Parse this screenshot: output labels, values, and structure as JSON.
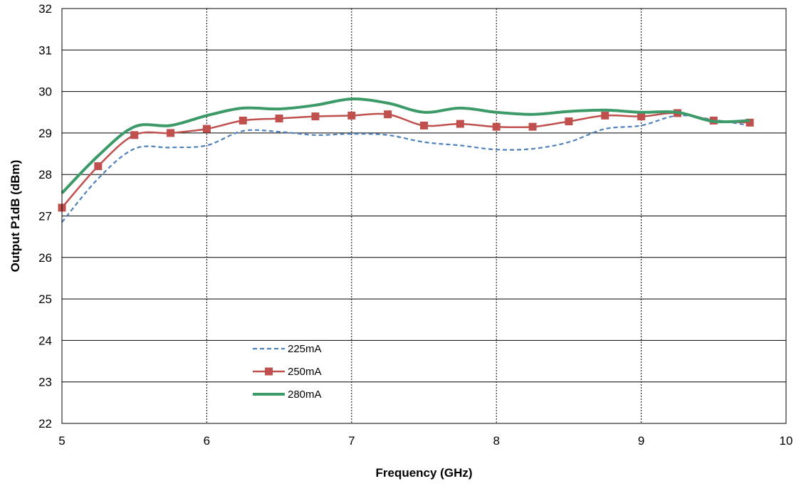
{
  "chart_data": {
    "type": "line",
    "title": "",
    "xlabel": "Frequency (GHz)",
    "ylabel": "Output P1dB (dBm)",
    "xlim": [
      5,
      10
    ],
    "ylim": [
      22,
      32
    ],
    "xticks": [
      5,
      6,
      7,
      8,
      9,
      10
    ],
    "yticks": [
      22,
      23,
      24,
      25,
      26,
      27,
      28,
      29,
      30,
      31,
      32
    ],
    "grid": {
      "horizontal": "solid",
      "vertical": "dashed"
    },
    "legend_position": "bottom-left",
    "x": [
      5,
      5.25,
      5.5,
      5.75,
      6,
      6.25,
      6.5,
      6.75,
      7,
      7.25,
      7.5,
      7.75,
      8,
      8.25,
      8.5,
      8.75,
      9,
      9.25,
      9.5,
      9.75
    ],
    "series": [
      {
        "name": "225mA",
        "style": "dashed",
        "marker": "none",
        "color": "#4F81BD",
        "values": [
          26.85,
          27.9,
          28.62,
          28.65,
          28.7,
          29.05,
          29.03,
          28.95,
          28.98,
          28.95,
          28.78,
          28.7,
          28.6,
          28.62,
          28.78,
          29.1,
          29.18,
          29.42,
          29.32,
          29.18
        ]
      },
      {
        "name": "250mA",
        "style": "solid",
        "marker": "square",
        "color": "#C0504D",
        "values": [
          27.2,
          28.2,
          28.95,
          29.0,
          29.1,
          29.3,
          29.35,
          29.4,
          29.42,
          29.45,
          29.18,
          29.22,
          29.15,
          29.15,
          29.28,
          29.42,
          29.4,
          29.48,
          29.3,
          29.25
        ]
      },
      {
        "name": "280mA",
        "style": "solid",
        "marker": "none",
        "color": "#3C9A68",
        "values": [
          27.55,
          28.45,
          29.15,
          29.18,
          29.42,
          29.6,
          29.58,
          29.67,
          29.82,
          29.72,
          29.5,
          29.6,
          29.5,
          29.45,
          29.52,
          29.55,
          29.5,
          29.5,
          29.28,
          29.3
        ]
      }
    ]
  }
}
